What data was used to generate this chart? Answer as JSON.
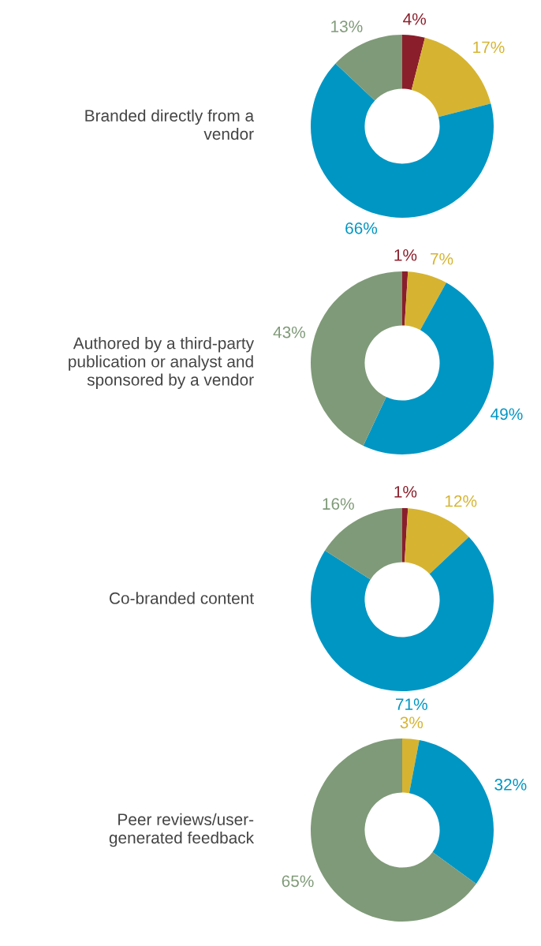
{
  "chart_data": [
    {
      "type": "donut",
      "title": "Branded directly from a\nvendor",
      "categories": [
        null,
        null,
        null,
        null
      ],
      "values": [
        4,
        17,
        66,
        13
      ],
      "colors": [
        "#8b1e2b",
        "#d6b431",
        "#0096c3",
        "#7f9a78"
      ],
      "value_labels": [
        "4%",
        "17%",
        "66%",
        "13%"
      ]
    },
    {
      "type": "donut",
      "title": "Authored by a third-party\npublication or analyst and\nsponsored by a vendor",
      "categories": [
        null,
        null,
        null,
        null
      ],
      "values": [
        1,
        7,
        49,
        43
      ],
      "colors": [
        "#8b1e2b",
        "#d6b431",
        "#0096c3",
        "#7f9a78"
      ],
      "value_labels": [
        "1%",
        "7%",
        "49%",
        "43%"
      ]
    },
    {
      "type": "donut",
      "title": "Co-branded content",
      "categories": [
        null,
        null,
        null,
        null
      ],
      "values": [
        1,
        12,
        71,
        16
      ],
      "colors": [
        "#8b1e2b",
        "#d6b431",
        "#0096c3",
        "#7f9a78"
      ],
      "value_labels": [
        "1%",
        "12%",
        "71%",
        "16%"
      ]
    },
    {
      "type": "donut",
      "title": "Peer reviews/user-\ngenerated feedback",
      "categories": [
        null,
        null,
        null
      ],
      "values": [
        3,
        32,
        65
      ],
      "colors": [
        "#d6b431",
        "#0096c3",
        "#7f9a78"
      ],
      "value_labels": [
        "3%",
        "32%",
        "65%"
      ]
    }
  ]
}
